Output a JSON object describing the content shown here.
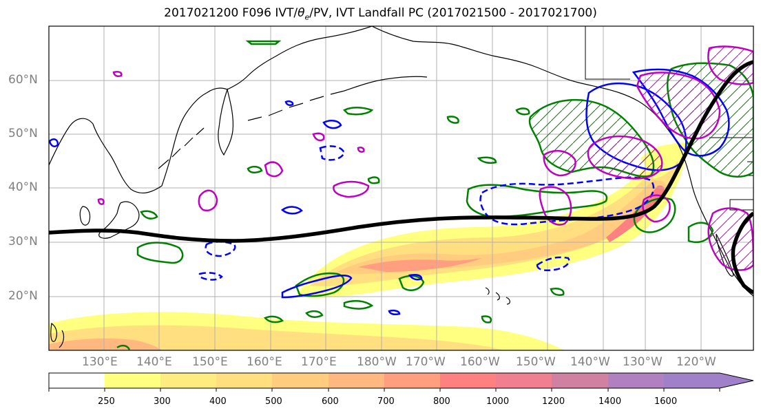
{
  "title": {
    "prefix": "2017021200 F096 IVT/",
    "theta": "θ",
    "theta_sub": "e",
    "suffix": "/PV, IVT Landfall PC (2017021500 - 2017021700)"
  },
  "lat_labels": [
    "60°N",
    "50°N",
    "40°N",
    "30°N",
    "20°N"
  ],
  "lon_labels": [
    "130°E",
    "140°E",
    "150°E",
    "160°E",
    "170°E",
    "180°W",
    "170°W",
    "160°W",
    "150°W",
    "140°W",
    "130°W",
    "120°W"
  ],
  "colorbar": {
    "levels": [
      "250",
      "300",
      "400",
      "500",
      "600",
      "700",
      "800",
      "1000",
      "1200",
      "1400",
      "1600"
    ],
    "colors": [
      "#ffffff",
      "#ffff80",
      "#ffec80",
      "#ffdf80",
      "#ffcc80",
      "#ffb880",
      "#ff9f80",
      "#ff8080",
      "#f0808f",
      "#d080a0",
      "#b080c0",
      "#a080c8"
    ]
  },
  "colors": {
    "ivt_low": "#ffff80",
    "ivt_mid": "#ffcc80",
    "ivt_high": "#ff8080",
    "theta_e_contour": "#008000",
    "pv_contour": "#0000ff",
    "pc_contour": "#c000c0",
    "landfall_line": "#000000",
    "coastline": "#000000",
    "grid": "#b0b0b0"
  }
}
